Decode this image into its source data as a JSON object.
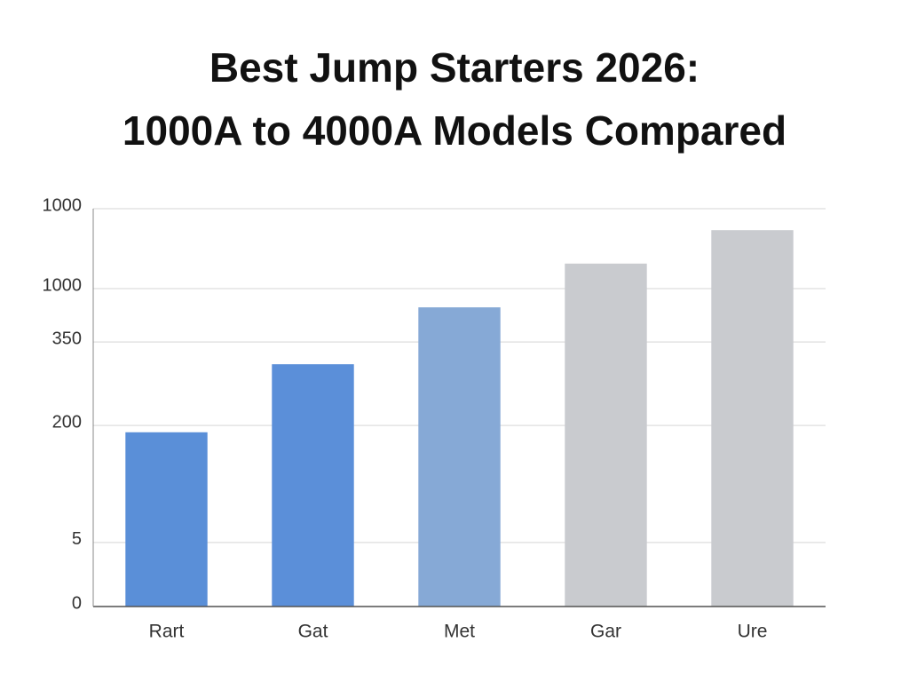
{
  "chart_data": {
    "type": "bar",
    "title": [
      "Best Jump Starters 2026:",
      "1000A to 4000A Models Compared"
    ],
    "categories": [
      "Rart",
      "Gat",
      "Met",
      "Gar",
      "Ure"
    ],
    "values": [
      438,
      609,
      752,
      862,
      946
    ],
    "colors": [
      "#5a8fd8",
      "#5b8fd9",
      "#86a9d6",
      "#c9cbcf",
      "#c9cbcf"
    ],
    "ylim": [
      0,
      1000
    ],
    "yticks": [
      0,
      {
        "value": 161,
        "label": "5"
      },
      {
        "value": 455,
        "label": "200"
      },
      {
        "value": 665,
        "label": "350"
      },
      {
        "value": 799,
        "label": "1000"
      },
      1000
    ],
    "grid": true
  }
}
